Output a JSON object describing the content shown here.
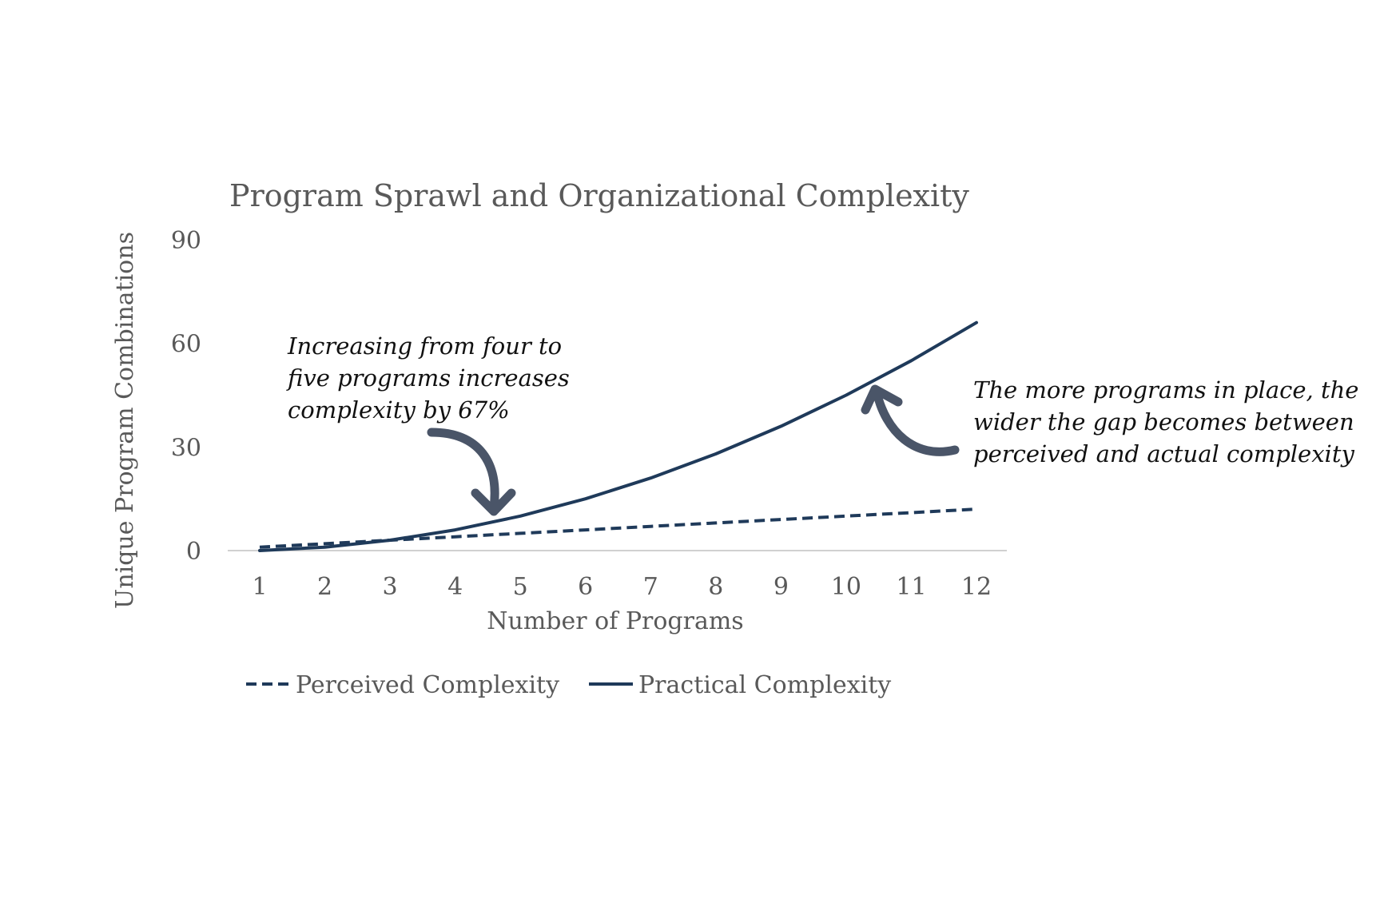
{
  "chart_data": {
    "type": "line",
    "title": "Program Sprawl and Organizational Complexity",
    "xlabel": "Number of Programs",
    "ylabel": "Unique Program Combinations",
    "x": [
      1,
      2,
      3,
      4,
      5,
      6,
      7,
      8,
      9,
      10,
      11,
      12
    ],
    "ylim": [
      0,
      90
    ],
    "yticks": [
      0,
      30,
      60,
      90
    ],
    "grid": false,
    "legend_position": "bottom",
    "series": [
      {
        "name": "Perceived Complexity",
        "style": "dashed",
        "color": "#1f3a5a",
        "values": [
          1,
          2,
          3,
          4,
          5,
          6,
          7,
          8,
          9,
          10,
          11,
          12
        ]
      },
      {
        "name": "Practical Complexity",
        "style": "solid",
        "color": "#1f3a5a",
        "values": [
          0,
          1,
          3,
          6,
          10,
          15,
          21,
          28,
          36,
          45,
          55,
          66
        ]
      }
    ],
    "annotations": [
      {
        "lines": [
          "Increasing from four to",
          "five programs increases",
          "complexity by 67%"
        ]
      },
      {
        "lines": [
          "The more programs in place, the",
          "wider the gap becomes between",
          "perceived and actual complexity"
        ]
      }
    ],
    "arrow_color": "#4a5568",
    "axis_color": "#d0d0d0"
  }
}
